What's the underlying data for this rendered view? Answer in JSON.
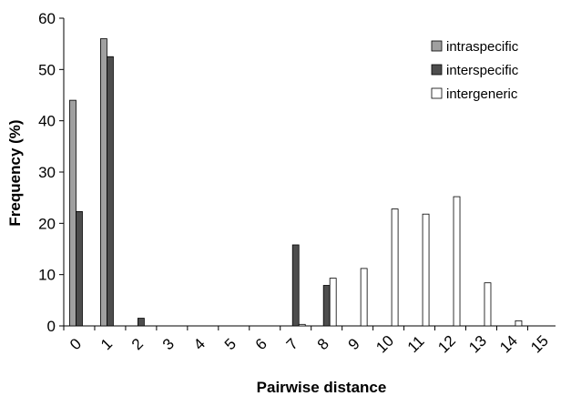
{
  "chart_data": {
    "type": "bar",
    "categories": [
      "0",
      "1",
      "2",
      "3",
      "4",
      "5",
      "6",
      "7",
      "8",
      "9",
      "10",
      "11",
      "12",
      "13",
      "14",
      "15"
    ],
    "series": [
      {
        "name": "intraspecific",
        "color": "#a0a0a0",
        "values": [
          44,
          56,
          0,
          0,
          0,
          0,
          0,
          0,
          0,
          0,
          0,
          0,
          0,
          0,
          0,
          0
        ]
      },
      {
        "name": "interspecific",
        "color": "#4d4d4d",
        "values": [
          22.3,
          52.5,
          1.5,
          0,
          0,
          0,
          0,
          15.8,
          7.9,
          0,
          0,
          0,
          0,
          0,
          0,
          0
        ]
      },
      {
        "name": "intergeneric",
        "color": "#ffffff",
        "values": [
          0,
          0,
          0,
          0,
          0,
          0,
          0,
          0.3,
          9.3,
          11.2,
          22.8,
          21.8,
          25.2,
          8.4,
          1.0,
          0
        ]
      }
    ],
    "xlabel": "Pairwise distance",
    "ylabel": "Frequency (%)",
    "ylim": [
      0,
      60
    ],
    "yticks": [
      0,
      10,
      20,
      30,
      40,
      50,
      60
    ],
    "grid": false,
    "legend_position": "top-right"
  }
}
